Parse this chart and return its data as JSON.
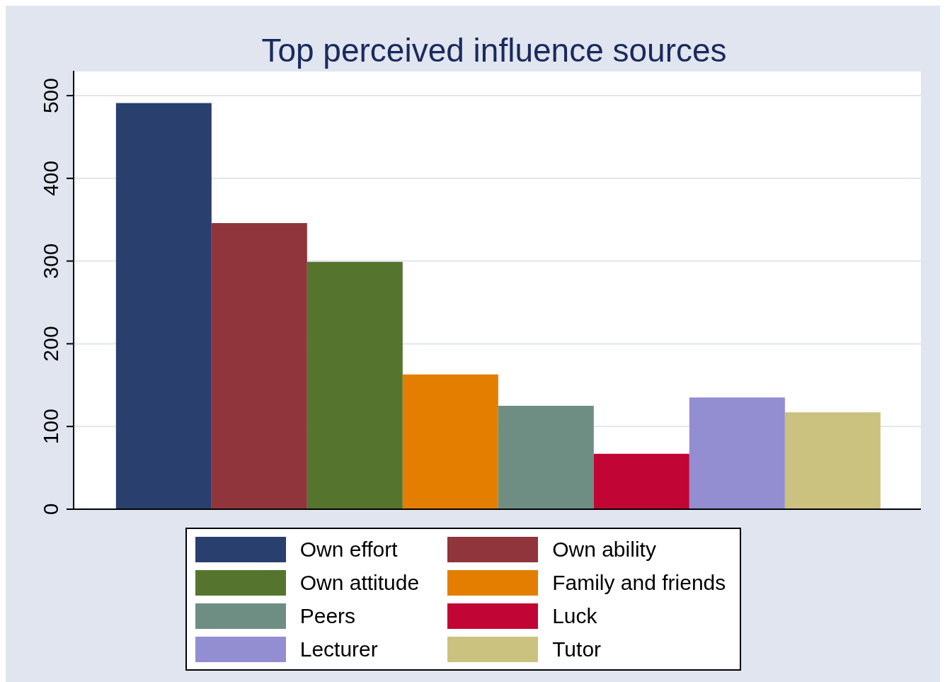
{
  "chart_data": {
    "type": "bar",
    "title": "Top perceived influence sources",
    "categories": [
      null
    ],
    "series": [
      {
        "name": "Own effort",
        "color": "#293f6e",
        "values": [
          491
        ]
      },
      {
        "name": "Own ability",
        "color": "#90353b",
        "values": [
          346
        ]
      },
      {
        "name": "Own attitude",
        "color": "#55752f",
        "values": [
          299
        ]
      },
      {
        "name": "Family and friends",
        "color": "#e37e00",
        "values": [
          163
        ]
      },
      {
        "name": "Peers",
        "color": "#6e8e84",
        "values": [
          125
        ]
      },
      {
        "name": "Luck",
        "color": "#c10534",
        "values": [
          67
        ]
      },
      {
        "name": "Lecturer",
        "color": "#938dd2",
        "values": [
          135
        ]
      },
      {
        "name": "Tutor",
        "color": "#cac27e",
        "values": [
          117
        ]
      }
    ],
    "ylim": [
      0,
      530
    ],
    "yticks": [
      0,
      100,
      200,
      300,
      400,
      500
    ],
    "grid": "y",
    "legend": "bottom"
  }
}
